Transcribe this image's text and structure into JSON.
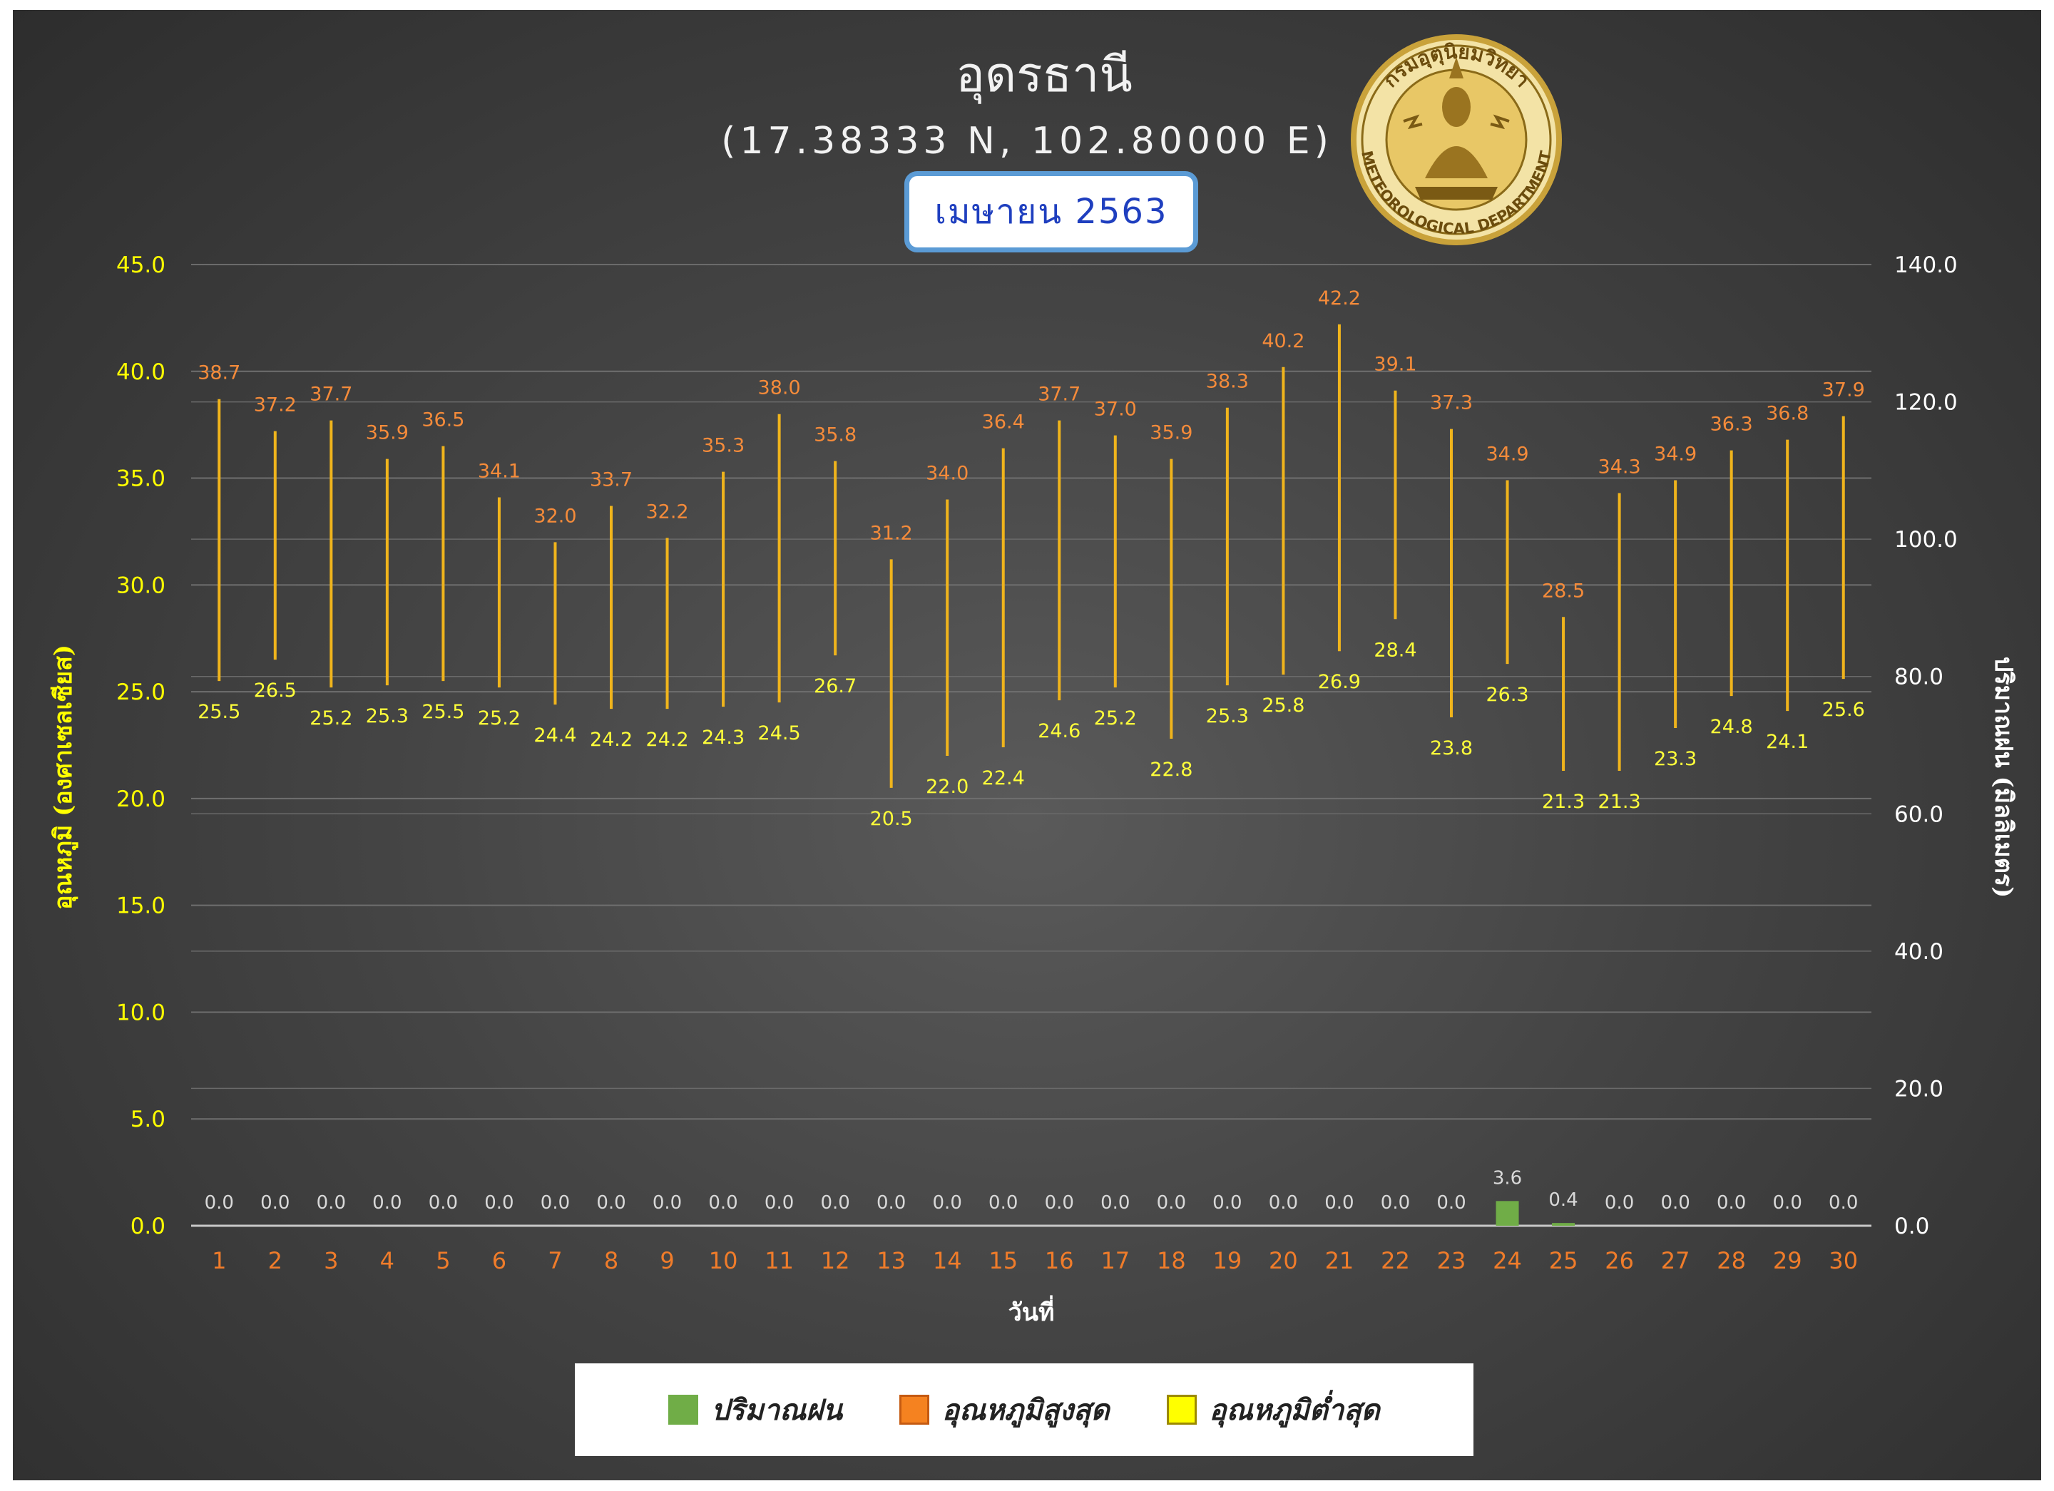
{
  "header": {
    "title": "อุดรธานี",
    "coords": "(17.38333 N, 102.80000 E)",
    "month": "เมษายน 2563"
  },
  "logo": {
    "text_top": "กรมอุตุนิยมวิทยา",
    "text_bottom": "METEOROLOGICAL DEPARTMENT"
  },
  "legend": {
    "items": [
      {
        "label": "ปริมาณฝน",
        "color": "#70ad47"
      },
      {
        "label": "อุณหภูมิสูงสุด",
        "color": "#f58220"
      },
      {
        "label": "อุณหภูมิต่ำสุด",
        "color": "#ffff00"
      }
    ]
  },
  "chart_data": {
    "type": "bar",
    "xlabel": "วันที่",
    "ylabel_left": "อุณหภูมิ (องศาเซลเซียส)",
    "ylabel_right": "ปริมาณฝน (มิลลิเมตร)",
    "ylim_left": [
      0,
      45
    ],
    "ylim_right": [
      0,
      140
    ],
    "yticks_left": [
      "0.0",
      "5.0",
      "10.0",
      "15.0",
      "20.0",
      "25.0",
      "30.0",
      "35.0",
      "40.0",
      "45.0"
    ],
    "yticks_right": [
      "0.0",
      "20.0",
      "40.0",
      "60.0",
      "80.0",
      "100.0",
      "120.0",
      "140.0"
    ],
    "grid": true,
    "legend_position": "bottom",
    "categories": [
      "1",
      "2",
      "3",
      "4",
      "5",
      "6",
      "7",
      "8",
      "9",
      "10",
      "11",
      "12",
      "13",
      "14",
      "15",
      "16",
      "17",
      "18",
      "19",
      "20",
      "21",
      "22",
      "23",
      "24",
      "25",
      "26",
      "27",
      "28",
      "29",
      "30"
    ],
    "series": [
      {
        "name": "ปริมาณฝน",
        "axis": "right",
        "color": "#70ad47",
        "values": [
          0,
          0,
          0,
          0,
          0,
          0,
          0,
          0,
          0,
          0,
          0,
          0,
          0,
          0,
          0,
          0,
          0,
          0,
          0,
          0,
          0,
          0,
          0,
          3.6,
          0.4,
          0,
          0,
          0,
          0,
          0
        ]
      },
      {
        "name": "อุณหภูมิสูงสุด",
        "axis": "left",
        "color": "#f58220",
        "values": [
          38.7,
          37.2,
          37.7,
          35.9,
          36.5,
          34.1,
          32.0,
          33.7,
          32.2,
          35.3,
          38.0,
          35.8,
          31.2,
          34.0,
          36.4,
          37.7,
          37.0,
          35.9,
          38.3,
          40.2,
          42.2,
          39.1,
          37.3,
          34.9,
          28.5,
          34.3,
          34.9,
          36.3,
          36.8,
          37.9
        ]
      },
      {
        "name": "อุณหภูมิต่ำสุด",
        "axis": "left",
        "color": "#ffff00",
        "values": [
          25.5,
          26.5,
          25.2,
          25.3,
          25.5,
          25.2,
          24.4,
          24.2,
          24.2,
          24.3,
          24.5,
          26.7,
          20.5,
          22.0,
          22.4,
          24.6,
          25.2,
          22.8,
          25.3,
          25.8,
          26.9,
          28.4,
          23.8,
          26.3,
          21.3,
          21.3,
          23.3,
          24.8,
          24.1,
          25.6
        ]
      }
    ]
  }
}
